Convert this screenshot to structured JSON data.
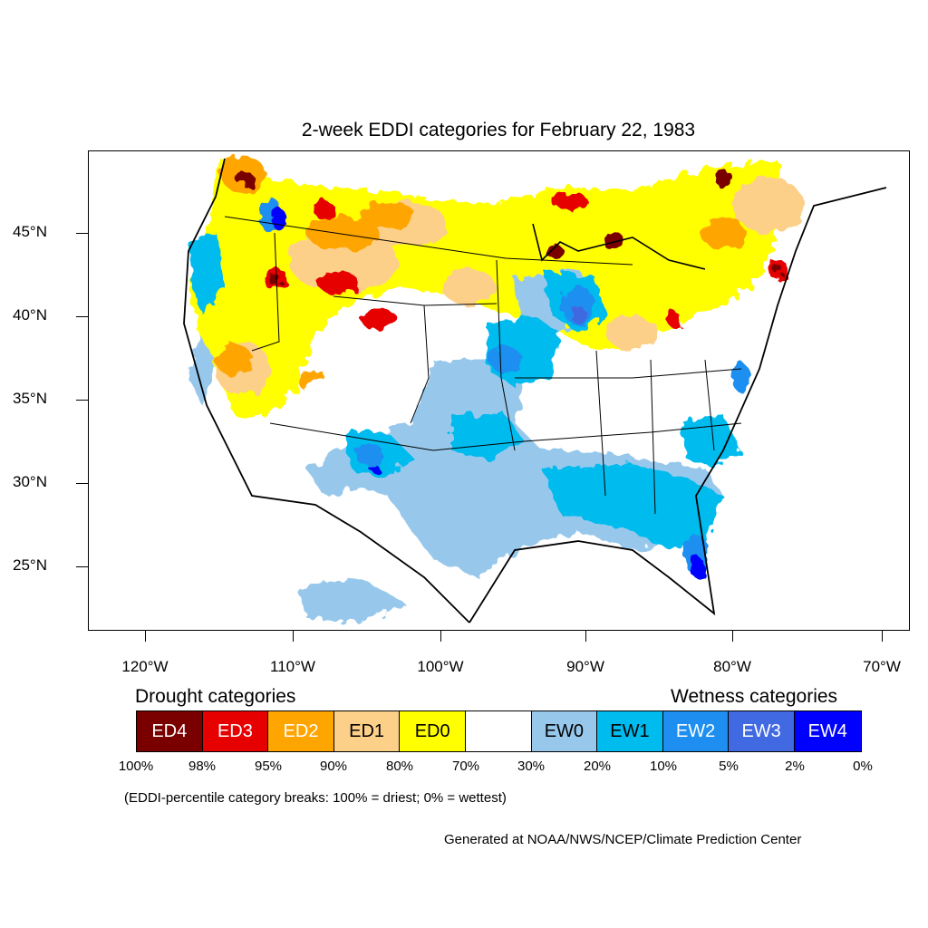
{
  "title": "2-week EDDI categories for February 22, 1983",
  "map": {
    "latitude_labels": [
      "45°N",
      "40°N",
      "35°N",
      "30°N",
      "25°N"
    ],
    "longitude_labels": [
      "120°W",
      "110°W",
      "100°W",
      "90°W",
      "80°W",
      "70°W"
    ],
    "region": "Contiguous United States with parts of Canada and Mexico",
    "category_colors": {
      "ED4": "#7a0000",
      "ED3": "#e60000",
      "ED2": "#ffa500",
      "ED1": "#fdd08a",
      "ED0": "#ffff00",
      "neutral": "#ffffff",
      "EW0": "#97c8ec",
      "EW1": "#00bbee",
      "EW2": "#1e8ff0",
      "EW3": "#4169e1",
      "EW4": "#0000ff"
    }
  },
  "legend": {
    "drought_header": "Drought categories",
    "wetness_header": "Wetness categories",
    "categories": [
      {
        "label": "ED4",
        "color": "#7a0000",
        "text_color": "#ffffff"
      },
      {
        "label": "ED3",
        "color": "#e60000",
        "text_color": "#ffffff"
      },
      {
        "label": "ED2",
        "color": "#ffa500",
        "text_color": "#ffffff"
      },
      {
        "label": "ED1",
        "color": "#fdd08a",
        "text_color": "#000000"
      },
      {
        "label": "ED0",
        "color": "#ffff00",
        "text_color": "#000000"
      },
      {
        "label": "",
        "color": "#ffffff",
        "text_color": "#000000"
      },
      {
        "label": "EW0",
        "color": "#97c8ec",
        "text_color": "#000000"
      },
      {
        "label": "EW1",
        "color": "#00bbee",
        "text_color": "#000000"
      },
      {
        "label": "EW2",
        "color": "#1e8ff0",
        "text_color": "#ffffff"
      },
      {
        "label": "EW3",
        "color": "#4169e1",
        "text_color": "#ffffff"
      },
      {
        "label": "EW4",
        "color": "#0000ff",
        "text_color": "#ffffff"
      }
    ],
    "breaks": [
      "100%",
      "98%",
      "95%",
      "90%",
      "80%",
      "70%",
      "30%",
      "20%",
      "10%",
      "5%",
      "2%",
      "0%"
    ],
    "note": "(EDDI-percentile category breaks: 100% = driest; 0% = wettest)"
  },
  "credit": "Generated at NOAA/NWS/NCEP/Climate Prediction Center"
}
